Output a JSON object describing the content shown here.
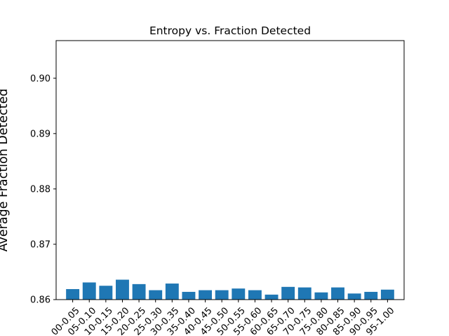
{
  "chart_data": {
    "type": "bar",
    "title": "Entropy vs. Fraction Detected",
    "xlabel": "",
    "ylabel": "Average Fraction Detected",
    "categories": [
      "00-0.05",
      "05-0.10",
      "10-0.15",
      "15-0.20",
      "20-0.25",
      "25-0.30",
      "30-0.35",
      "35-0.40",
      "40-0.45",
      "45-0.50",
      "50-0.55",
      "55-0.60",
      "60-0.65",
      "65-0.70",
      "70-0.75",
      "75-0.80",
      "80-0.85",
      "85-0.90",
      "90-0.95",
      "95-1.00"
    ],
    "values": [
      0.8619,
      0.8631,
      0.8625,
      0.8636,
      0.8628,
      0.8617,
      0.8629,
      0.8614,
      0.8617,
      0.8617,
      0.862,
      0.8617,
      0.8609,
      0.8623,
      0.8622,
      0.8613,
      0.8622,
      0.8611,
      0.8614,
      0.8618
    ],
    "ylim": [
      0.86,
      0.9068
    ],
    "yticks": [
      "0.86",
      "0.87",
      "0.88",
      "0.89",
      "0.90"
    ],
    "bar_color": "#1f77b4",
    "grid": false,
    "legend": "none"
  }
}
